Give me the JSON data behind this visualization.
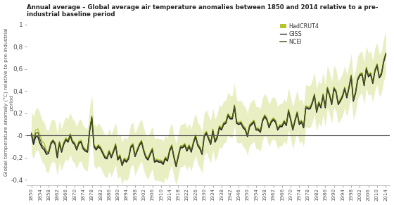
{
  "title": "Annual average – Global average air temperature anomalies between 1850 and 2014 relative to a pre-\nindustrial baseline period",
  "ylabel": "Global temperature anomaly (°C) relative to pre-industrial\nperiod",
  "legend_labels": [
    "HadCRUT4",
    "GISS",
    "NCEI"
  ],
  "line_colors": [
    "#b5c42a",
    "#1a1a2e",
    "#4a5a1a"
  ],
  "fill_color": "#c8d96a",
  "fill_alpha": 0.4,
  "ylim": [
    -0.45,
    1.05
  ],
  "xlim": [
    1848,
    2016
  ],
  "yticks": [
    -0.4,
    -0.2,
    0,
    0.2,
    0.4,
    0.6,
    0.8,
    1
  ],
  "hline_y": 0,
  "bg_color": "#ffffff",
  "years": [
    1850,
    1851,
    1852,
    1853,
    1854,
    1855,
    1856,
    1857,
    1858,
    1859,
    1860,
    1861,
    1862,
    1863,
    1864,
    1865,
    1866,
    1867,
    1868,
    1869,
    1870,
    1871,
    1872,
    1873,
    1874,
    1875,
    1876,
    1877,
    1878,
    1879,
    1880,
    1881,
    1882,
    1883,
    1884,
    1885,
    1886,
    1887,
    1888,
    1889,
    1890,
    1891,
    1892,
    1893,
    1894,
    1895,
    1896,
    1897,
    1898,
    1899,
    1900,
    1901,
    1902,
    1903,
    1904,
    1905,
    1906,
    1907,
    1908,
    1909,
    1910,
    1911,
    1912,
    1913,
    1914,
    1915,
    1916,
    1917,
    1918,
    1919,
    1920,
    1921,
    1922,
    1923,
    1924,
    1925,
    1926,
    1927,
    1928,
    1929,
    1930,
    1931,
    1932,
    1933,
    1934,
    1935,
    1936,
    1937,
    1938,
    1939,
    1940,
    1941,
    1942,
    1943,
    1944,
    1945,
    1946,
    1947,
    1948,
    1949,
    1950,
    1951,
    1952,
    1953,
    1954,
    1955,
    1956,
    1957,
    1958,
    1959,
    1960,
    1961,
    1962,
    1963,
    1964,
    1965,
    1966,
    1967,
    1968,
    1969,
    1970,
    1971,
    1972,
    1973,
    1974,
    1975,
    1976,
    1977,
    1978,
    1979,
    1980,
    1981,
    1982,
    1983,
    1984,
    1985,
    1986,
    1987,
    1988,
    1989,
    1990,
    1991,
    1992,
    1993,
    1994,
    1995,
    1996,
    1997,
    1998,
    1999,
    2000,
    2001,
    2002,
    2003,
    2004,
    2005,
    2006,
    2007,
    2008,
    2009,
    2010,
    2011,
    2012,
    2013,
    2014
  ],
  "hadcrut4": [
    0.03,
    -0.02,
    0.05,
    0.06,
    0.01,
    -0.05,
    -0.07,
    -0.14,
    -0.14,
    -0.06,
    -0.04,
    -0.06,
    -0.17,
    -0.05,
    -0.13,
    -0.06,
    -0.02,
    -0.04,
    0.02,
    -0.04,
    -0.06,
    -0.11,
    -0.05,
    -0.04,
    -0.1,
    -0.12,
    -0.13,
    0.06,
    0.18,
    -0.08,
    -0.11,
    -0.08,
    -0.1,
    -0.14,
    -0.18,
    -0.19,
    -0.13,
    -0.18,
    -0.13,
    -0.07,
    -0.2,
    -0.17,
    -0.25,
    -0.2,
    -0.22,
    -0.19,
    -0.09,
    -0.07,
    -0.17,
    -0.12,
    -0.07,
    -0.04,
    -0.12,
    -0.18,
    -0.2,
    -0.15,
    -0.11,
    -0.22,
    -0.21,
    -0.22,
    -0.22,
    -0.24,
    -0.19,
    -0.21,
    -0.12,
    -0.08,
    -0.18,
    -0.26,
    -0.17,
    -0.09,
    -0.09,
    -0.07,
    -0.12,
    -0.08,
    -0.13,
    -0.05,
    0.01,
    -0.07,
    -0.1,
    -0.15,
    0.01,
    0.04,
    -0.01,
    -0.06,
    0.06,
    -0.04,
    0.0,
    0.09,
    0.07,
    0.12,
    0.13,
    0.2,
    0.17,
    0.17,
    0.28,
    0.13,
    0.12,
    0.13,
    0.09,
    0.07,
    0.01,
    0.1,
    0.12,
    0.14,
    0.07,
    0.07,
    0.05,
    0.15,
    0.19,
    0.16,
    0.09,
    0.14,
    0.16,
    0.14,
    0.07,
    0.1,
    0.1,
    0.14,
    0.11,
    0.24,
    0.16,
    0.07,
    0.15,
    0.22,
    0.12,
    0.14,
    0.09,
    0.27,
    0.26,
    0.26,
    0.31,
    0.38,
    0.23,
    0.31,
    0.27,
    0.38,
    0.27,
    0.44,
    0.38,
    0.3,
    0.44,
    0.41,
    0.3,
    0.33,
    0.37,
    0.44,
    0.36,
    0.45,
    0.55,
    0.33,
    0.4,
    0.52,
    0.56,
    0.57,
    0.47,
    0.62,
    0.55,
    0.57,
    0.49,
    0.6,
    0.65,
    0.54,
    0.57,
    0.68,
    0.75
  ],
  "hadcrut4_upper": [
    0.22,
    0.17,
    0.24,
    0.25,
    0.2,
    0.14,
    0.12,
    0.05,
    0.05,
    0.13,
    0.15,
    0.13,
    0.02,
    0.14,
    0.06,
    0.13,
    0.17,
    0.15,
    0.21,
    0.15,
    0.13,
    0.08,
    0.14,
    0.15,
    0.09,
    0.07,
    0.06,
    0.25,
    0.37,
    0.11,
    0.08,
    0.11,
    0.09,
    0.05,
    0.01,
    0.0,
    0.06,
    0.01,
    0.06,
    0.12,
    -0.01,
    0.02,
    -0.06,
    -0.01,
    -0.03,
    0.0,
    0.1,
    0.12,
    0.02,
    0.07,
    0.12,
    0.15,
    0.07,
    0.01,
    -0.01,
    0.04,
    0.08,
    -0.03,
    -0.02,
    -0.03,
    -0.03,
    -0.05,
    0.0,
    -0.02,
    0.07,
    0.11,
    0.01,
    -0.07,
    0.02,
    0.1,
    0.1,
    0.12,
    0.07,
    0.11,
    0.06,
    0.14,
    0.2,
    0.12,
    0.09,
    0.04,
    0.2,
    0.23,
    0.18,
    0.13,
    0.25,
    0.15,
    0.19,
    0.28,
    0.26,
    0.31,
    0.32,
    0.39,
    0.36,
    0.36,
    0.47,
    0.32,
    0.31,
    0.32,
    0.28,
    0.26,
    0.2,
    0.29,
    0.31,
    0.33,
    0.26,
    0.26,
    0.24,
    0.34,
    0.38,
    0.35,
    0.28,
    0.33,
    0.35,
    0.33,
    0.26,
    0.29,
    0.29,
    0.33,
    0.3,
    0.43,
    0.35,
    0.26,
    0.34,
    0.41,
    0.31,
    0.33,
    0.28,
    0.46,
    0.45,
    0.45,
    0.5,
    0.57,
    0.42,
    0.5,
    0.46,
    0.57,
    0.46,
    0.63,
    0.57,
    0.49,
    0.63,
    0.6,
    0.49,
    0.52,
    0.56,
    0.63,
    0.55,
    0.64,
    0.74,
    0.52,
    0.59,
    0.71,
    0.75,
    0.76,
    0.66,
    0.81,
    0.74,
    0.76,
    0.68,
    0.79,
    0.84,
    0.73,
    0.76,
    0.87,
    0.94
  ],
  "hadcrut4_lower": [
    -0.16,
    -0.21,
    -0.14,
    -0.13,
    -0.18,
    -0.24,
    -0.26,
    -0.33,
    -0.33,
    -0.25,
    -0.23,
    -0.25,
    -0.36,
    -0.24,
    -0.32,
    -0.25,
    -0.21,
    -0.23,
    -0.17,
    -0.23,
    -0.25,
    -0.3,
    -0.24,
    -0.23,
    -0.29,
    -0.31,
    -0.32,
    -0.13,
    -0.01,
    -0.27,
    -0.3,
    -0.27,
    -0.29,
    -0.33,
    -0.37,
    -0.38,
    -0.32,
    -0.37,
    -0.32,
    -0.26,
    -0.39,
    -0.36,
    -0.44,
    -0.39,
    -0.41,
    -0.38,
    -0.28,
    -0.26,
    -0.36,
    -0.31,
    -0.26,
    -0.23,
    -0.31,
    -0.37,
    -0.39,
    -0.34,
    -0.3,
    -0.41,
    -0.4,
    -0.41,
    -0.41,
    -0.43,
    -0.38,
    -0.4,
    -0.31,
    -0.27,
    -0.37,
    -0.45,
    -0.36,
    -0.28,
    -0.28,
    -0.26,
    -0.31,
    -0.27,
    -0.32,
    -0.24,
    -0.18,
    -0.26,
    -0.29,
    -0.34,
    -0.18,
    -0.15,
    -0.2,
    -0.25,
    -0.13,
    -0.23,
    -0.19,
    -0.1,
    -0.12,
    -0.07,
    -0.06,
    0.01,
    -0.02,
    -0.02,
    0.09,
    -0.06,
    -0.07,
    -0.06,
    -0.1,
    -0.12,
    -0.18,
    -0.09,
    -0.07,
    -0.05,
    -0.12,
    -0.12,
    -0.14,
    -0.04,
    0.0,
    -0.03,
    -0.1,
    -0.05,
    -0.03,
    -0.05,
    -0.12,
    -0.09,
    -0.09,
    -0.05,
    -0.08,
    0.05,
    -0.03,
    -0.12,
    -0.04,
    0.03,
    -0.07,
    -0.05,
    -0.1,
    0.08,
    0.07,
    0.07,
    0.12,
    0.19,
    0.04,
    0.12,
    0.08,
    0.19,
    0.08,
    0.25,
    0.19,
    0.11,
    0.25,
    0.22,
    0.11,
    0.14,
    0.18,
    0.25,
    0.17,
    0.26,
    0.36,
    0.14,
    0.21,
    0.33,
    0.37,
    0.38,
    0.28,
    0.43,
    0.36,
    0.38,
    0.3,
    0.41,
    0.46,
    0.35,
    0.38,
    0.49,
    0.56
  ],
  "giss": [
    0.01,
    -0.08,
    -0.01,
    -0.01,
    -0.07,
    -0.11,
    -0.13,
    -0.17,
    -0.16,
    -0.08,
    -0.05,
    -0.08,
    -0.2,
    -0.07,
    -0.15,
    -0.08,
    -0.04,
    -0.06,
    0.0,
    -0.06,
    -0.08,
    -0.13,
    -0.07,
    -0.06,
    -0.12,
    -0.14,
    -0.15,
    0.04,
    0.16,
    -0.1,
    -0.13,
    -0.1,
    -0.12,
    -0.16,
    -0.2,
    -0.21,
    -0.15,
    -0.2,
    -0.15,
    -0.09,
    -0.22,
    -0.19,
    -0.27,
    -0.22,
    -0.24,
    -0.21,
    -0.11,
    -0.09,
    -0.19,
    -0.14,
    -0.09,
    -0.06,
    -0.14,
    -0.2,
    -0.22,
    -0.17,
    -0.13,
    -0.24,
    -0.23,
    -0.24,
    -0.24,
    -0.26,
    -0.21,
    -0.23,
    -0.14,
    -0.1,
    -0.2,
    -0.28,
    -0.19,
    -0.11,
    -0.11,
    -0.09,
    -0.14,
    -0.1,
    -0.15,
    -0.07,
    -0.01,
    -0.09,
    -0.12,
    -0.17,
    -0.01,
    0.02,
    -0.03,
    -0.08,
    0.04,
    -0.06,
    -0.02,
    0.07,
    0.05,
    0.1,
    0.11,
    0.18,
    0.15,
    0.15,
    0.26,
    0.11,
    0.1,
    0.11,
    0.07,
    0.05,
    -0.01,
    0.08,
    0.1,
    0.12,
    0.05,
    0.05,
    0.03,
    0.13,
    0.17,
    0.14,
    0.07,
    0.12,
    0.14,
    0.12,
    0.05,
    0.08,
    0.08,
    0.12,
    0.09,
    0.22,
    0.14,
    0.05,
    0.13,
    0.2,
    0.1,
    0.12,
    0.07,
    0.25,
    0.24,
    0.24,
    0.29,
    0.36,
    0.21,
    0.29,
    0.25,
    0.36,
    0.25,
    0.42,
    0.36,
    0.28,
    0.42,
    0.39,
    0.28,
    0.31,
    0.35,
    0.42,
    0.34,
    0.43,
    0.53,
    0.31,
    0.38,
    0.5,
    0.54,
    0.55,
    0.45,
    0.6,
    0.53,
    0.55,
    0.47,
    0.58,
    0.63,
    0.52,
    0.55,
    0.66,
    0.73
  ],
  "ncei": [
    0.02,
    -0.05,
    0.02,
    0.03,
    -0.03,
    -0.09,
    -0.11,
    -0.15,
    -0.15,
    -0.07,
    -0.04,
    -0.07,
    -0.18,
    -0.06,
    -0.14,
    -0.07,
    -0.03,
    -0.05,
    0.01,
    -0.05,
    -0.07,
    -0.12,
    -0.06,
    -0.05,
    -0.11,
    -0.13,
    -0.14,
    0.05,
    0.17,
    -0.09,
    -0.12,
    -0.09,
    -0.11,
    -0.15,
    -0.19,
    -0.2,
    -0.14,
    -0.19,
    -0.14,
    -0.08,
    -0.21,
    -0.18,
    -0.26,
    -0.21,
    -0.23,
    -0.2,
    -0.1,
    -0.08,
    -0.18,
    -0.13,
    -0.08,
    -0.05,
    -0.13,
    -0.19,
    -0.21,
    -0.16,
    -0.12,
    -0.23,
    -0.22,
    -0.23,
    -0.23,
    -0.25,
    -0.2,
    -0.22,
    -0.13,
    -0.09,
    -0.19,
    -0.27,
    -0.18,
    -0.1,
    -0.1,
    -0.08,
    -0.13,
    -0.09,
    -0.14,
    -0.06,
    0.0,
    -0.08,
    -0.11,
    -0.16,
    0.0,
    0.03,
    -0.02,
    -0.07,
    0.05,
    -0.05,
    -0.01,
    0.08,
    0.06,
    0.11,
    0.12,
    0.19,
    0.16,
    0.16,
    0.27,
    0.12,
    0.11,
    0.12,
    0.08,
    0.06,
    0.0,
    0.09,
    0.11,
    0.13,
    0.06,
    0.06,
    0.04,
    0.14,
    0.18,
    0.15,
    0.08,
    0.13,
    0.15,
    0.13,
    0.06,
    0.09,
    0.09,
    0.13,
    0.1,
    0.23,
    0.15,
    0.06,
    0.14,
    0.21,
    0.11,
    0.13,
    0.08,
    0.26,
    0.25,
    0.25,
    0.3,
    0.37,
    0.22,
    0.3,
    0.26,
    0.37,
    0.26,
    0.43,
    0.37,
    0.29,
    0.43,
    0.4,
    0.29,
    0.32,
    0.36,
    0.43,
    0.35,
    0.44,
    0.54,
    0.32,
    0.39,
    0.51,
    0.55,
    0.56,
    0.46,
    0.61,
    0.54,
    0.56,
    0.48,
    0.59,
    0.64,
    0.53,
    0.56,
    0.67,
    0.74
  ]
}
